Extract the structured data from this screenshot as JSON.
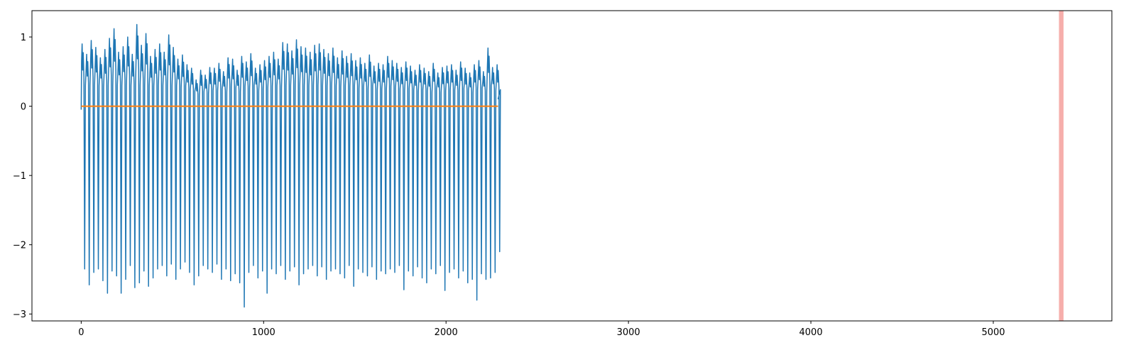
{
  "chart_data": {
    "type": "line",
    "title": "",
    "xlabel": "",
    "ylabel": "",
    "xlim": [
      -270,
      5650
    ],
    "ylim": [
      -3.1,
      1.38
    ],
    "xticks": [
      0,
      1000,
      2000,
      3000,
      4000,
      5000
    ],
    "yticks": [
      -3,
      -2,
      -1,
      0,
      1
    ],
    "xtick_labels": [
      "0",
      "1000",
      "2000",
      "3000",
      "4000",
      "5000"
    ],
    "ytick_labels": [
      "−3",
      "−2",
      "−1",
      "0",
      "1"
    ],
    "grid": false,
    "legend": "none",
    "highlight_span": {
      "x0": 5360,
      "x1": 5385,
      "color": "#f4a09c"
    },
    "series": [
      {
        "color": "#1f77b4",
        "x_start": 0,
        "x_end": 2285,
        "cycle_length": 25,
        "peaks": [
          0.9,
          0.75,
          0.95,
          0.85,
          0.7,
          0.82,
          0.98,
          1.12,
          0.78,
          0.86,
          1.0,
          0.75,
          1.18,
          0.88,
          1.05,
          0.72,
          0.82,
          0.9,
          0.78,
          1.03,
          0.85,
          0.68,
          0.74,
          0.6,
          0.55,
          0.38,
          0.52,
          0.45,
          0.56,
          0.55,
          0.62,
          0.5,
          0.7,
          0.68,
          0.52,
          0.72,
          0.64,
          0.76,
          0.55,
          0.6,
          0.66,
          0.72,
          0.78,
          0.68,
          0.92,
          0.9,
          0.8,
          0.96,
          0.86,
          0.84,
          0.78,
          0.88,
          0.9,
          0.82,
          0.76,
          0.84,
          0.7,
          0.8,
          0.72,
          0.76,
          0.66,
          0.7,
          0.62,
          0.74,
          0.58,
          0.62,
          0.6,
          0.72,
          0.66,
          0.62,
          0.56,
          0.64,
          0.58,
          0.52,
          0.6,
          0.55,
          0.5,
          0.62,
          0.48,
          0.56,
          0.58,
          0.6,
          0.52,
          0.64,
          0.55,
          0.48,
          0.6,
          0.66,
          0.5,
          0.84,
          0.56,
          0.6
        ],
        "troughs": [
          -2.35,
          -2.58,
          -2.4,
          -2.35,
          -2.52,
          -2.7,
          -2.38,
          -2.45,
          -2.7,
          -2.5,
          -2.3,
          -2.62,
          -2.55,
          -2.38,
          -2.6,
          -2.48,
          -2.35,
          -2.3,
          -2.45,
          -2.28,
          -2.5,
          -2.35,
          -2.25,
          -2.4,
          -2.58,
          -2.45,
          -2.3,
          -2.35,
          -2.4,
          -2.28,
          -2.5,
          -2.35,
          -2.52,
          -2.42,
          -2.55,
          -2.9,
          -2.4,
          -2.3,
          -2.48,
          -2.38,
          -2.7,
          -2.35,
          -2.42,
          -2.3,
          -2.5,
          -2.38,
          -2.32,
          -2.58,
          -2.42,
          -2.35,
          -2.3,
          -2.45,
          -2.32,
          -2.5,
          -2.38,
          -2.35,
          -2.42,
          -2.48,
          -2.3,
          -2.6,
          -2.35,
          -2.4,
          -2.45,
          -2.32,
          -2.5,
          -2.38,
          -2.42,
          -2.35,
          -2.4,
          -2.3,
          -2.65,
          -2.38,
          -2.45,
          -2.32,
          -2.48,
          -2.55,
          -2.35,
          -2.42,
          -2.3,
          -2.66,
          -2.4,
          -2.35,
          -2.48,
          -2.38,
          -2.55,
          -2.5,
          -2.8,
          -2.42,
          -2.5,
          -2.48,
          -2.4,
          -2.1
        ]
      },
      {
        "color": "#ff7f0e",
        "x": [
          0,
          2285
        ],
        "y": [
          0.0,
          0.0
        ]
      }
    ]
  }
}
